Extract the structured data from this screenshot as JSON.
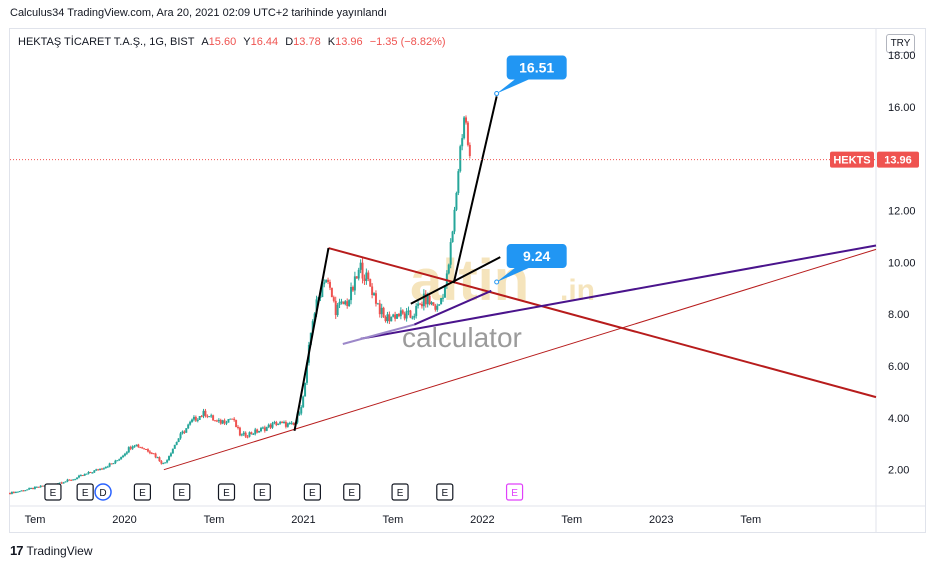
{
  "publication_line": "Calculus34 TradingView.com, Ara 20, 2021 02:09 UTC+2 tarihinde yayınlandı",
  "legend": {
    "symbol": "HEKTAŞ TİCARET T.A.Ş., 1G, BIST",
    "open_label": "A",
    "open": "15.60",
    "high_label": "Y",
    "high": "16.44",
    "low_label": "D",
    "low": "13.78",
    "close_label": "K",
    "close": "13.96",
    "change": "−1.35 (−8.82%)"
  },
  "currency_button": "TRY",
  "footer": {
    "logo_mark": "17",
    "logo_text": "TradingView"
  },
  "watermark": {
    "brand": "altin",
    "brand_suffix": ".in",
    "subtitle": "calculator"
  },
  "colors": {
    "up": "#26a69a",
    "down": "#ef5350",
    "red_line": "#b71c1c",
    "purple_line": "#4a148c",
    "light_purple": "#9c88c9",
    "label_blue": "#2196f3",
    "price_tag": "#ef5350",
    "event_pink": "#e040fb"
  },
  "chart_data": {
    "type": "candlestick",
    "title": "HEKTAŞ TİCARET T.A.Ş., 1G, BIST",
    "ylim": [
      0.6,
      19.0
    ],
    "y_ticks": [
      "18.00",
      "16.00",
      "14.00",
      "12.00",
      "10.00",
      "8.00",
      "6.00",
      "4.00",
      "2.00"
    ],
    "x_ticks": [
      {
        "label": "Tem",
        "t": 2019.5
      },
      {
        "label": "2020",
        "t": 2020.0
      },
      {
        "label": "Tem",
        "t": 2020.5
      },
      {
        "label": "2021",
        "t": 2021.0
      },
      {
        "label": "Tem",
        "t": 2021.5
      },
      {
        "label": "2022",
        "t": 2022.0
      },
      {
        "label": "Tem",
        "t": 2022.5
      },
      {
        "label": "2023",
        "t": 2023.0
      },
      {
        "label": "Tem",
        "t": 2023.5
      }
    ],
    "xlim": [
      2019.36,
      2024.2
    ],
    "current_price": {
      "symbol": "HEKTS",
      "value": 13.96
    },
    "price_path": [
      [
        2019.36,
        1.1
      ],
      [
        2019.5,
        1.3
      ],
      [
        2019.7,
        1.6
      ],
      [
        2019.85,
        2.0
      ],
      [
        2019.95,
        2.3
      ],
      [
        2020.05,
        3.0
      ],
      [
        2020.15,
        2.7
      ],
      [
        2020.22,
        2.2
      ],
      [
        2020.3,
        3.2
      ],
      [
        2020.38,
        3.9
      ],
      [
        2020.45,
        4.2
      ],
      [
        2020.52,
        3.8
      ],
      [
        2020.6,
        4.0
      ],
      [
        2020.65,
        3.3
      ],
      [
        2020.75,
        3.5
      ],
      [
        2020.85,
        3.8
      ],
      [
        2020.95,
        3.7
      ],
      [
        2021.0,
        4.8
      ],
      [
        2021.05,
        7.8
      ],
      [
        2021.12,
        9.5
      ],
      [
        2021.18,
        8.2
      ],
      [
        2021.25,
        8.5
      ],
      [
        2021.32,
        9.8
      ],
      [
        2021.38,
        9.0
      ],
      [
        2021.45,
        7.8
      ],
      [
        2021.52,
        8.0
      ],
      [
        2021.6,
        7.9
      ],
      [
        2021.68,
        8.6
      ],
      [
        2021.75,
        8.2
      ],
      [
        2021.8,
        9.3
      ],
      [
        2021.84,
        11.5
      ],
      [
        2021.87,
        14.0
      ],
      [
        2021.9,
        15.8
      ],
      [
        2021.93,
        13.96
      ]
    ],
    "annotations": [
      {
        "text": "16.51",
        "x": 2022.08,
        "y": 16.51
      },
      {
        "text": "9.24",
        "x": 2022.08,
        "y": 9.24
      }
    ],
    "event_markers": [
      {
        "label": "E",
        "t": 2019.6
      },
      {
        "label": "E",
        "t": 2019.78
      },
      {
        "label": "D",
        "t": 2019.88
      },
      {
        "label": "E",
        "t": 2020.1
      },
      {
        "label": "E",
        "t": 2020.32
      },
      {
        "label": "E",
        "t": 2020.57
      },
      {
        "label": "E",
        "t": 2020.77
      },
      {
        "label": "E",
        "t": 2021.05
      },
      {
        "label": "E",
        "t": 2021.27
      },
      {
        "label": "E",
        "t": 2021.54
      },
      {
        "label": "E",
        "t": 2021.79
      },
      {
        "label": "E",
        "t": 2022.18
      }
    ],
    "trend_lines": [
      {
        "color": "red_thin",
        "from": [
          2020.22,
          2.0
        ],
        "to": [
          2024.2,
          10.5
        ]
      },
      {
        "color": "red_thick",
        "from": [
          2021.14,
          10.55
        ],
        "to": [
          2024.2,
          4.8
        ]
      },
      {
        "color": "purple",
        "from": [
          2021.32,
          7.05
        ],
        "to": [
          2024.2,
          10.65
        ]
      },
      {
        "color": "black",
        "from": [
          2020.95,
          3.5
        ],
        "to": [
          2021.14,
          10.55
        ]
      },
      {
        "color": "black",
        "from": [
          2021.6,
          8.4
        ],
        "to": [
          2022.1,
          10.2
        ]
      },
      {
        "color": "black",
        "from": [
          2021.84,
          9.2
        ],
        "to": [
          2022.08,
          16.4
        ]
      },
      {
        "color": "light_purple",
        "from": [
          2021.22,
          6.85
        ],
        "to": [
          2021.62,
          7.6
        ]
      },
      {
        "color": "purple",
        "from": [
          2021.62,
          7.6
        ],
        "to": [
          2022.05,
          8.9
        ]
      }
    ]
  }
}
